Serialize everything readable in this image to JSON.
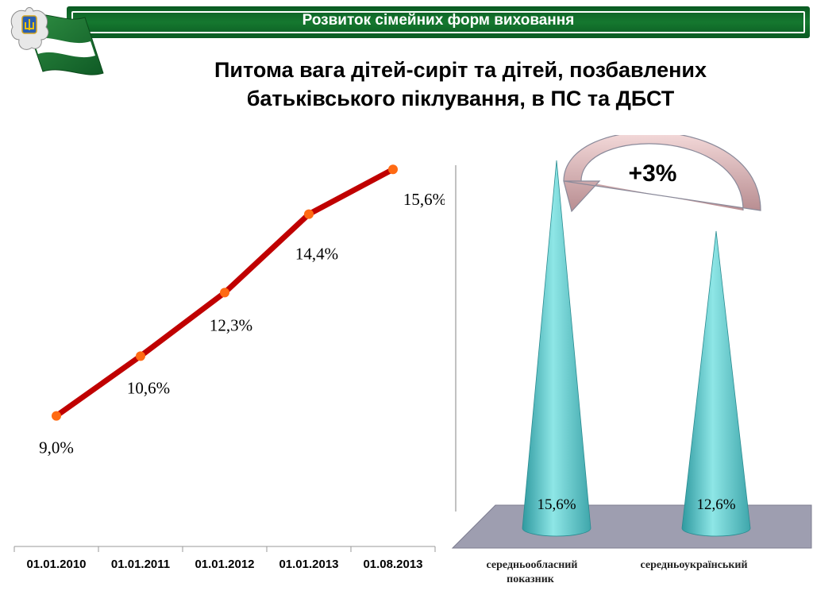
{
  "header": {
    "title": "Розвиток сімейних форм виховання"
  },
  "slide": {
    "title_line1": "Питома вага дітей-сиріт та дітей, позбавлених",
    "title_line2": "батьківського піклування, в ПС та ДБСТ"
  },
  "chart_data": [
    {
      "type": "line",
      "categories": [
        "01.01.2010",
        "01.01.2011",
        "01.01.2012",
        "01.01.2013",
        "01.08.2013"
      ],
      "series": [
        {
          "values": [
            9.0,
            10.6,
            12.3,
            14.4,
            15.6
          ],
          "color": "#c00000",
          "marker_color": "#ff6a13"
        }
      ],
      "data_labels": [
        "9,0%",
        "10,6%",
        "12,3%",
        "14,4%",
        "15,6%"
      ],
      "title": "",
      "xlabel": "",
      "ylabel": "",
      "ylim": [
        7.8,
        16.2
      ],
      "grid": false
    },
    {
      "type": "bar",
      "shape": "cone",
      "categories": [
        "середньообласний показник",
        "середньоукраїнський"
      ],
      "values": [
        15.6,
        12.6
      ],
      "data_labels": [
        "15,6%",
        "12,6%"
      ],
      "color": "#5ec8c8",
      "annotation": "+3%",
      "ylim": [
        0,
        16
      ]
    }
  ]
}
